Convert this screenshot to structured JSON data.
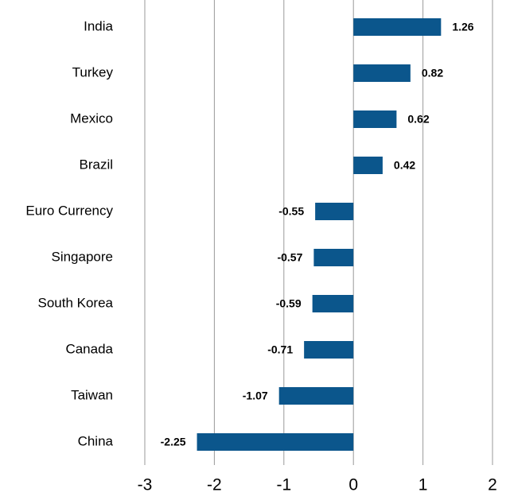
{
  "chart_data": {
    "type": "bar",
    "orientation": "horizontal",
    "categories": [
      "India",
      "Turkey",
      "Mexico",
      "Brazil",
      "Euro Currency",
      "Singapore",
      "South Korea",
      "Canada",
      "Taiwan",
      "China"
    ],
    "values": [
      1.26,
      0.82,
      0.62,
      0.42,
      -0.55,
      -0.57,
      -0.59,
      -0.71,
      -1.07,
      -2.25
    ],
    "color": "#0b568c",
    "xlim": [
      -3,
      2
    ],
    "xticks": [
      -3,
      -2,
      -1,
      0,
      1,
      2
    ],
    "grid": true
  }
}
